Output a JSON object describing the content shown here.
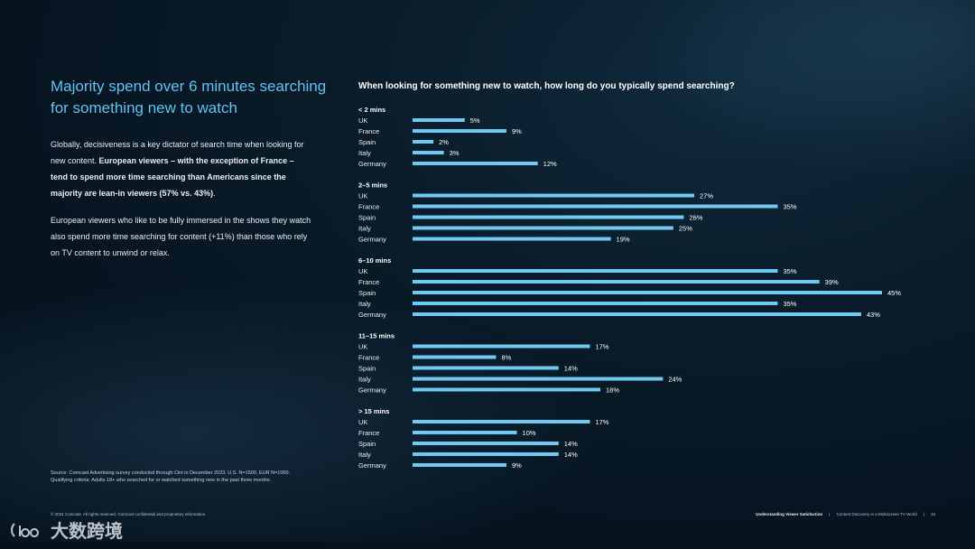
{
  "heading": "Majority spend over 6 minutes searching for something new to watch",
  "paragraph1": {
    "part1": "Globally, decisiveness is a key dictator of search time when looking for new content. ",
    "bold": "European viewers – with the exception of France – tend to spend more time searching than Americans since the majority are lean-in viewers (57% vs. 43%)",
    "part2": "."
  },
  "paragraph2": "European viewers who like to be fully immersed in the shows they watch also spend more time searching for content (+11%) than those who rely on TV content to unwind or relax.",
  "source_line1": "Source: Comcast Advertising survey conducted through Cint in December 2023. U.S. N=1500, EUR N=1000.",
  "source_line2": "Qualifying criteria: Adults 18+ who searched for or watched something new in the past three months.",
  "copyright": "© 2024 Comcast. All rights reserved. Comcast confidential and proprietary information.",
  "footer": {
    "report": "Understanding Viewer Satisfaction",
    "subtitle": "Content Discovery in a Multiscreen TV World",
    "page": "16"
  },
  "watermark": "大数跨境",
  "colors": {
    "accent": "#5ec4f2",
    "bar": "#6fc9f2"
  },
  "chart_data": {
    "type": "bar",
    "orientation": "horizontal",
    "title": "When looking for something new to watch, how long do you typically spend searching?",
    "unit": "%",
    "xlim": [
      0,
      45
    ],
    "groups": [
      {
        "name": "< 2 mins",
        "categories": [
          "UK",
          "France",
          "Spain",
          "Italy",
          "Germany"
        ],
        "values": [
          5,
          9,
          2,
          3,
          12
        ]
      },
      {
        "name": "2–5 mins",
        "categories": [
          "UK",
          "France",
          "Spain",
          "Italy",
          "Germany"
        ],
        "values": [
          27,
          35,
          26,
          25,
          19
        ]
      },
      {
        "name": "6–10 mins",
        "categories": [
          "UK",
          "France",
          "Spain",
          "Italy",
          "Germany"
        ],
        "values": [
          35,
          39,
          45,
          35,
          43
        ]
      },
      {
        "name": "11–15 mins",
        "categories": [
          "UK",
          "France",
          "Spain",
          "Italy",
          "Germany"
        ],
        "values": [
          17,
          8,
          14,
          24,
          18
        ]
      },
      {
        "name": "> 15 mins",
        "categories": [
          "UK",
          "France",
          "Spain",
          "Italy",
          "Germany"
        ],
        "values": [
          17,
          10,
          14,
          14,
          9
        ]
      }
    ]
  }
}
